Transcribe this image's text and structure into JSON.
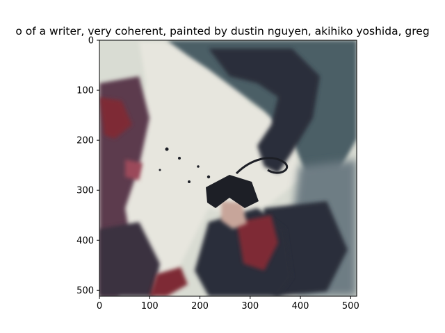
{
  "chart_data": {
    "type": "image",
    "title": "o of a writer,  very coherent, painted by dustin nguyen, akihiko yoshida, greg",
    "xlabel": "",
    "ylabel": "",
    "xlim": [
      0,
      512
    ],
    "ylim": [
      512,
      0
    ],
    "x_ticks": [
      0,
      100,
      200,
      300,
      400,
      500
    ],
    "y_ticks": [
      0,
      100,
      200,
      300,
      400,
      500
    ],
    "grid": false,
    "image": {
      "description": "watercolor painting of an anime-style character with dark hair in a red and black outfit, swirling dark teal ink strokes over pale background",
      "palette": {
        "background": "#d9dcd3",
        "paper": "#e7e6de",
        "ink_dark": "#2a2f3a",
        "ink_teal": "#4c5f66",
        "ink_slate": "#6e7d84",
        "crimson": "#7e2a35",
        "rose": "#9b4a5a",
        "plum": "#5b3a4e",
        "skin": "#c7a59a",
        "hair": "#1d1f26"
      }
    }
  }
}
